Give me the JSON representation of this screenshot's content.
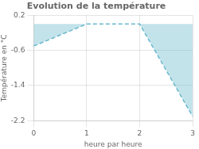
{
  "chart_data": {
    "type": "area",
    "title": "Evolution de la température",
    "xlabel": "heure par heure",
    "ylabel": "Température en °C",
    "x": [
      0,
      1,
      2,
      3
    ],
    "values": [
      -0.5,
      0.0,
      0.0,
      -2.1
    ],
    "color": "#6ab8cc",
    "line_style": "dashed",
    "xlim": [
      0,
      3
    ],
    "xticks": [
      0,
      1,
      2,
      3
    ],
    "ylim": [
      -2.2,
      0.2
    ],
    "yticks": [
      0.2,
      -0.6,
      -1.4,
      -2.2
    ],
    "grid": true
  }
}
